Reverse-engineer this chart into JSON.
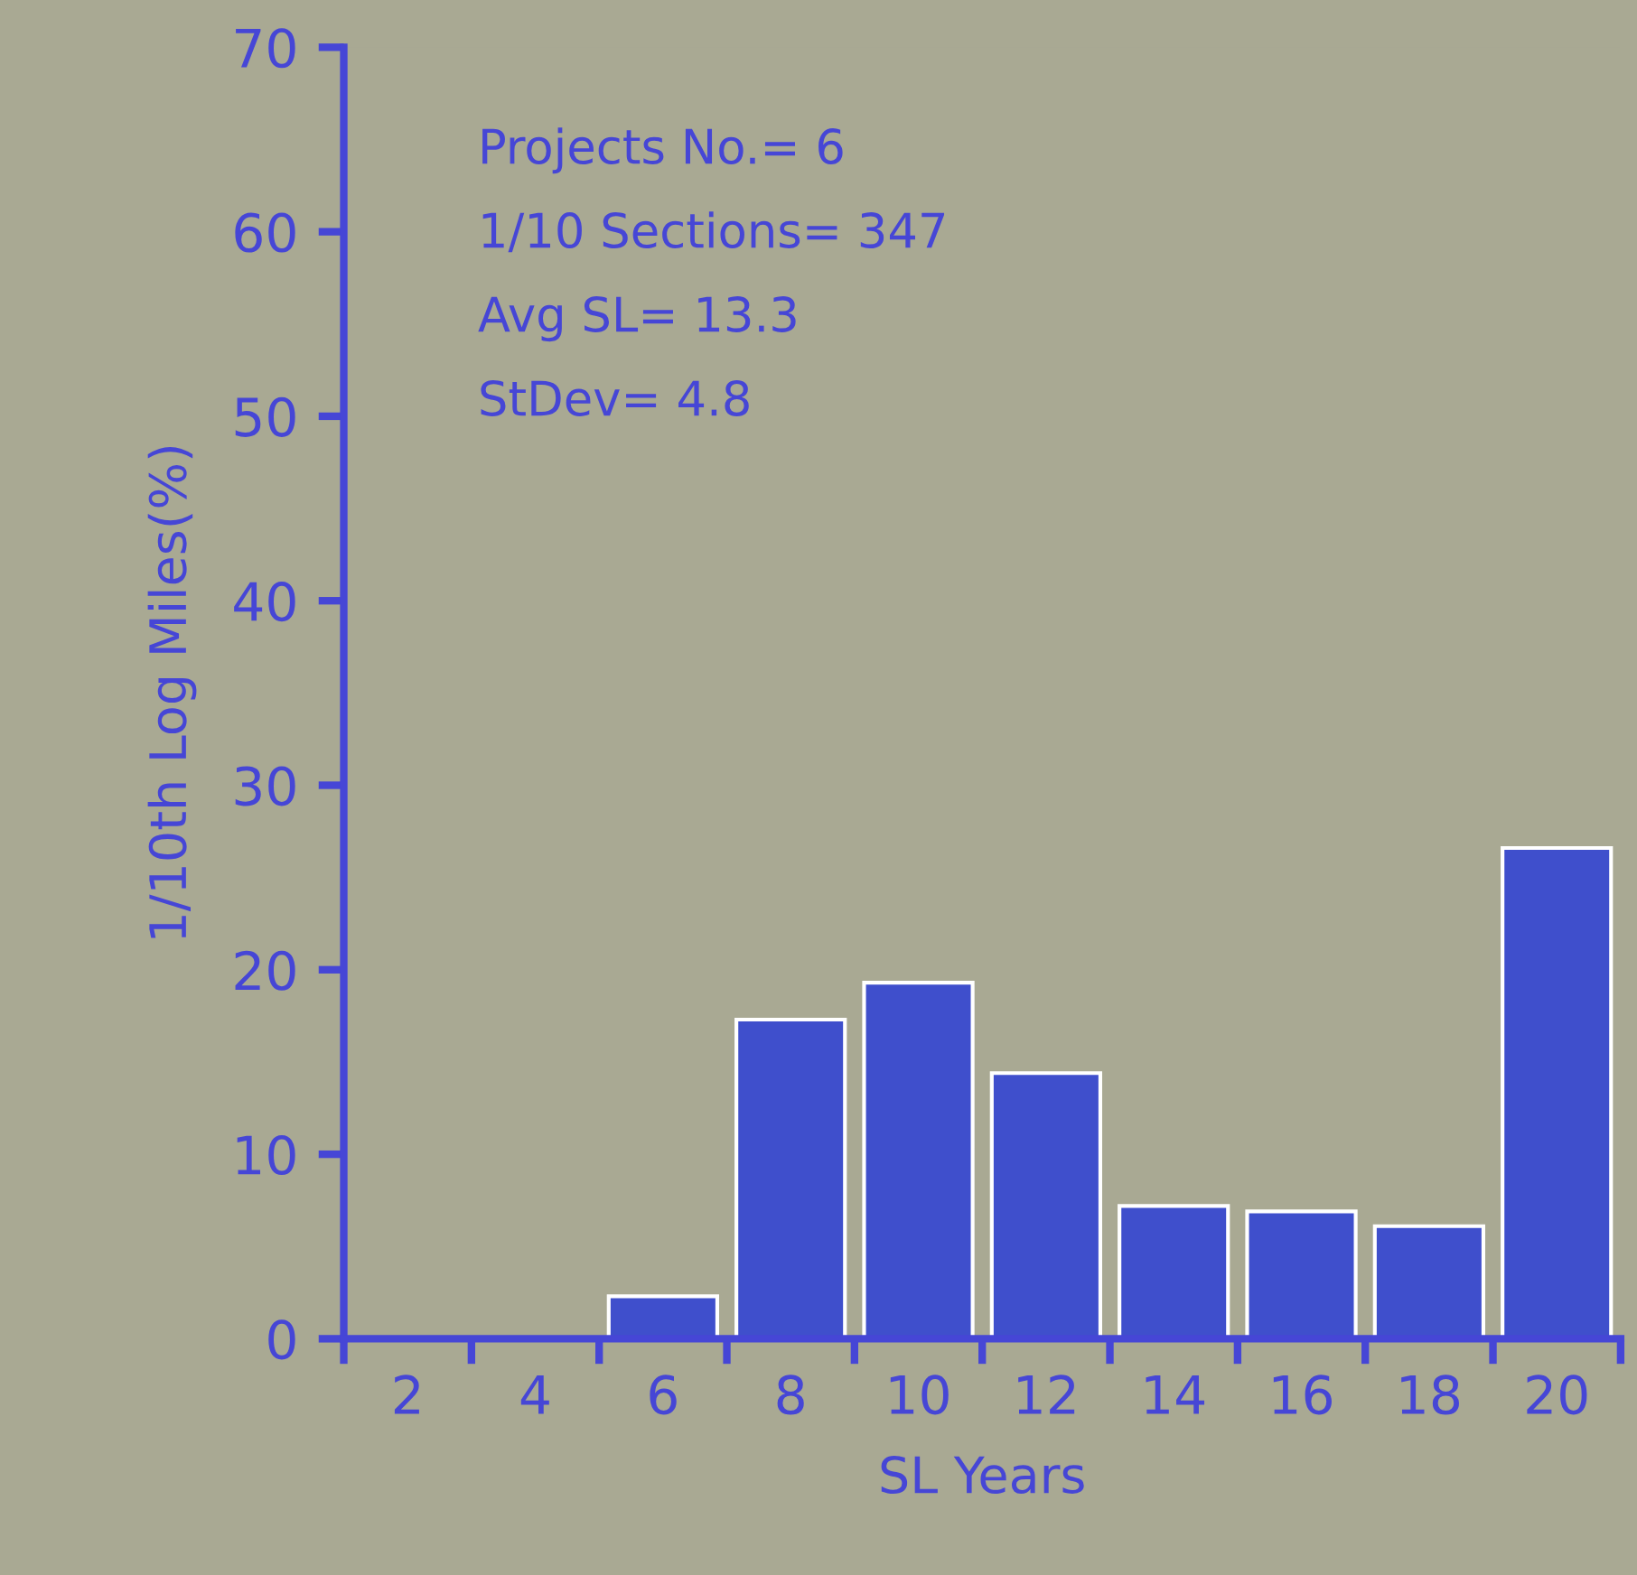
{
  "chart_data": {
    "type": "bar",
    "xlabel": "SL Years",
    "ylabel": "1/10th Log Miles(%)",
    "categories": [
      "2",
      "4",
      "6",
      "8",
      "10",
      "12",
      "14",
      "16",
      "18",
      "20"
    ],
    "values": [
      0,
      0,
      2.3,
      17.3,
      19.3,
      14.4,
      7.2,
      6.9,
      6.1,
      26.6
    ],
    "color": "#3f4fcc",
    "ylim": [
      0,
      70
    ],
    "yticks": [
      0,
      10,
      20,
      30,
      40,
      50,
      60,
      70
    ],
    "grid": false,
    "legend": false,
    "annotations": [
      "Projects No.= 6",
      "1/10 Sections= 347",
      "Avg SL= 13.3",
      "StDev= 4.8"
    ]
  }
}
